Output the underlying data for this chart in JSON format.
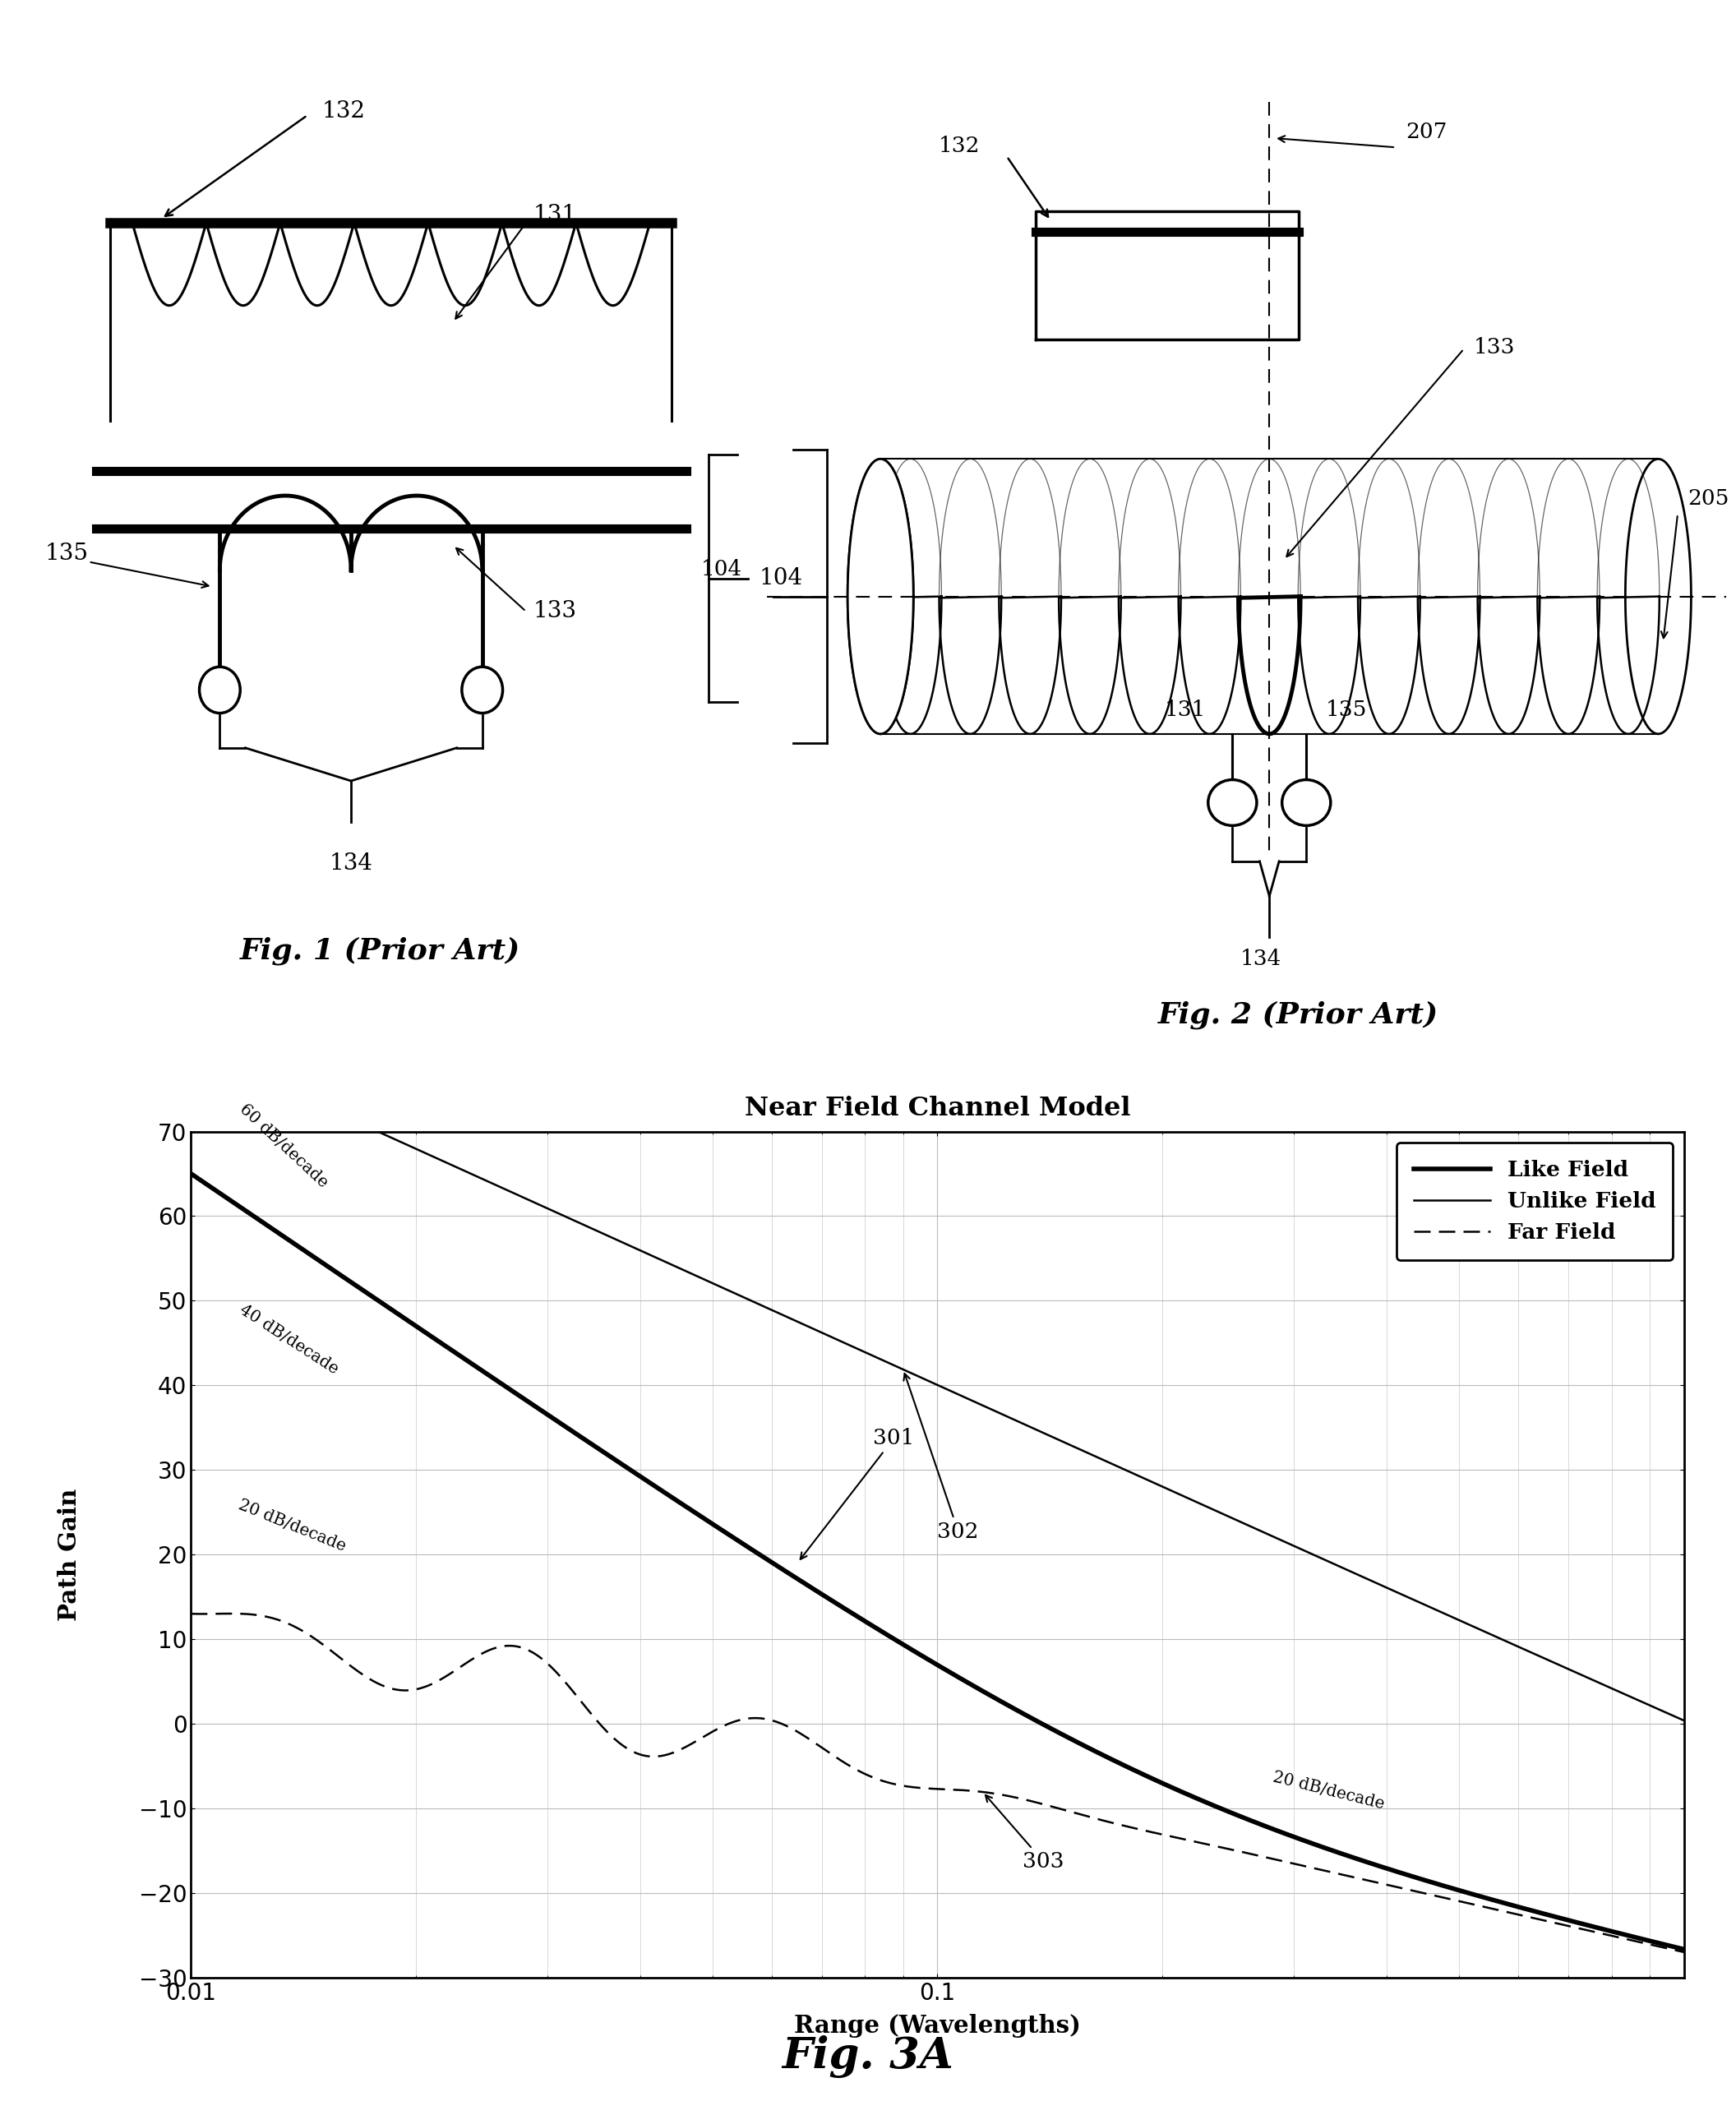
{
  "title": "Near Field Channel Model",
  "xlabel": "Range (Wavelengths)",
  "ylabel": "Path Gain",
  "fig3a_caption": "Fig. 3A",
  "fig1_caption": "Fig. 1 (Prior Art)",
  "fig2_caption": "Fig. 2 (Prior Art)",
  "ylim": [
    -30,
    70
  ],
  "yticks": [
    -30,
    -20,
    -10,
    0,
    10,
    20,
    30,
    40,
    50,
    60,
    70
  ],
  "xtick_labels": [
    "0.01",
    "0.1"
  ],
  "legend_entries": [
    "Like Field",
    "Unlike Field",
    "Far Field"
  ],
  "ann_60dB": "60 dB/decade",
  "ann_40dB": "40 dB/decade",
  "ann_20dB_left": "20 dB/decade",
  "ann_20dB_right": "20 dB/decade",
  "ann_301": "301",
  "ann_302": "302",
  "ann_303": "303",
  "bg_color": "#ffffff",
  "grid_color": "#bbbbbb"
}
